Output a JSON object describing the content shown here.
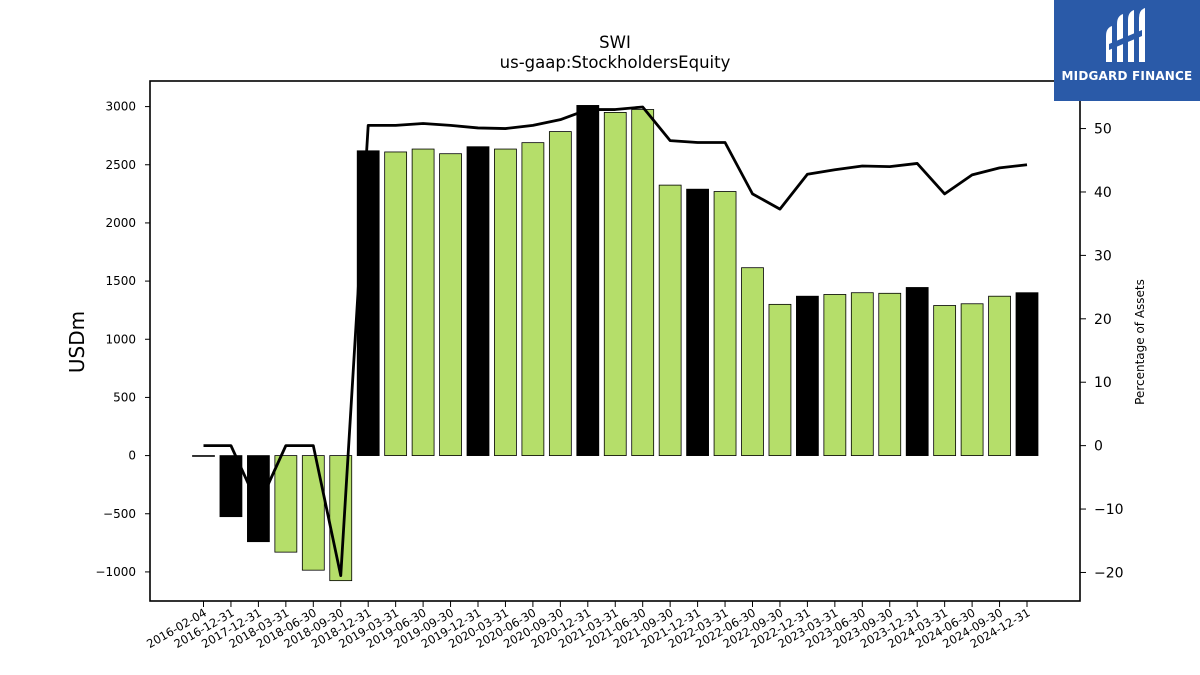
{
  "chart_data": {
    "type": "bar",
    "title": "SWI",
    "subtitle": "us-gaap:StockholdersEquity",
    "ylabel": "USDm",
    "y2label": "Percentage of Assets",
    "ylim": [
      -1250,
      3220
    ],
    "y2lim": [
      -24.5,
      57.5
    ],
    "yticks": [
      -1000,
      -500,
      0,
      500,
      1000,
      1500,
      2000,
      2500,
      3000
    ],
    "y2ticks": [
      -20,
      -10,
      0,
      10,
      20,
      30,
      40,
      50
    ],
    "y2ticklabels": [
      "−20",
      "−10",
      "0",
      "10",
      "20",
      "30",
      "40",
      "50"
    ],
    "yticklabels": [
      "−1000",
      "−500",
      "0",
      "500",
      "1000",
      "1500",
      "2000",
      "2500",
      "3000"
    ],
    "categories": [
      "2016-02-04",
      "2016-12-31",
      "2017-12-31",
      "2018-03-31",
      "2018-06-30",
      "2018-09-30",
      "2018-12-31",
      "2019-03-31",
      "2019-06-30",
      "2019-09-30",
      "2019-12-31",
      "2020-03-31",
      "2020-06-30",
      "2020-09-30",
      "2020-12-31",
      "2021-03-31",
      "2021-06-30",
      "2021-09-30",
      "2021-12-31",
      "2022-03-31",
      "2022-06-30",
      "2022-09-30",
      "2022-12-31",
      "2023-03-31",
      "2023-06-30",
      "2023-09-30",
      "2023-12-31",
      "2024-03-31",
      "2024-06-30",
      "2024-09-30",
      "2024-12-31"
    ],
    "series": [
      {
        "type": "bar",
        "axis": "left",
        "values": [
          0,
          -525,
          -740,
          -830,
          -985,
          -1075,
          2620,
          2610,
          2635,
          2595,
          2655,
          2635,
          2690,
          2785,
          3010,
          2950,
          2975,
          2325,
          2290,
          2270,
          1615,
          1300,
          1370,
          1385,
          1400,
          1395,
          1445,
          1290,
          1305,
          1370,
          1400
        ],
        "colors": [
          "#000000",
          "#000000",
          "#000000",
          "#b5de6a",
          "#b5de6a",
          "#b5de6a",
          "#000000",
          "#b5de6a",
          "#b5de6a",
          "#b5de6a",
          "#000000",
          "#b5de6a",
          "#b5de6a",
          "#b5de6a",
          "#000000",
          "#b5de6a",
          "#b5de6a",
          "#b5de6a",
          "#000000",
          "#b5de6a",
          "#b5de6a",
          "#b5de6a",
          "#000000",
          "#b5de6a",
          "#b5de6a",
          "#b5de6a",
          "#000000",
          "#b5de6a",
          "#b5de6a",
          "#b5de6a",
          "#000000"
        ]
      },
      {
        "type": "line",
        "axis": "right",
        "color": "#000000",
        "values": [
          0,
          0,
          -9.5,
          0,
          0,
          -20.5,
          50.5,
          50.5,
          50.8,
          50.5,
          50.1,
          50.0,
          50.5,
          51.4,
          53.0,
          53.0,
          53.4,
          48.1,
          47.8,
          47.8,
          39.7,
          37.3,
          42.8,
          43.5,
          44.1,
          44.0,
          44.5,
          39.7,
          42.7,
          43.8,
          44.3
        ]
      }
    ],
    "grid": false
  },
  "brand": {
    "name": "MIDGARD FINANCE",
    "bg_color": "#2a5aa8",
    "icon": "midgard-logo-icon"
  }
}
